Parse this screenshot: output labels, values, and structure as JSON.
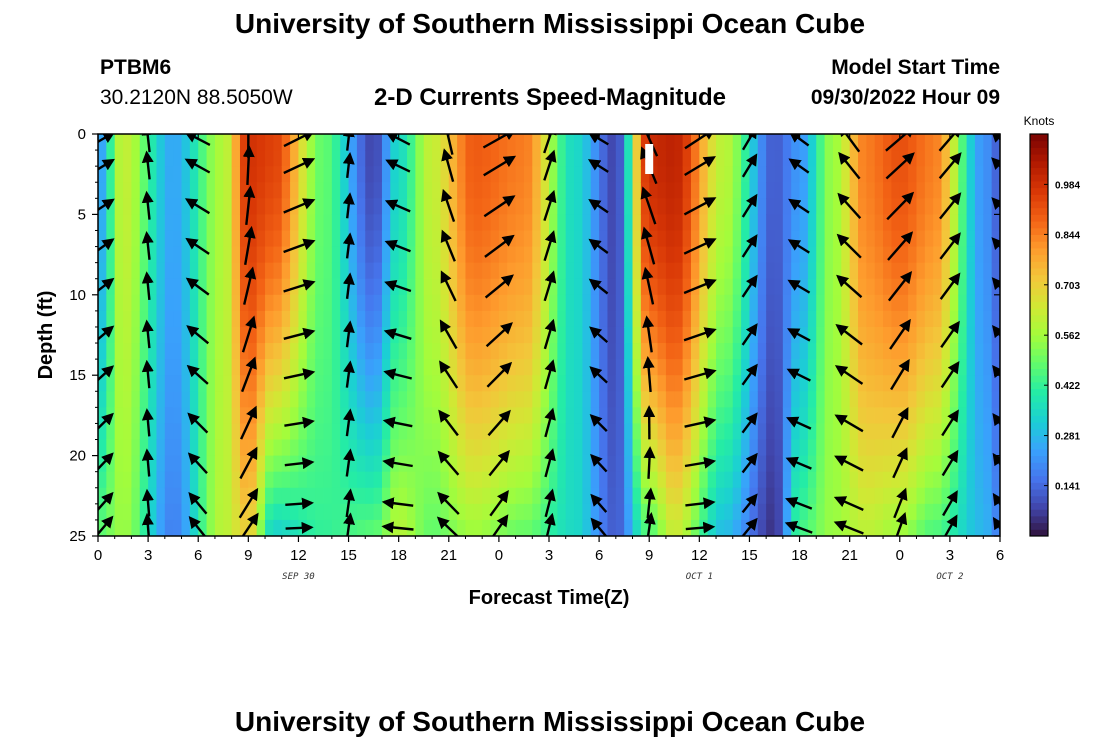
{
  "header": {
    "title": "University of Southern Mississippi Ocean Cube",
    "station": "PTBM6",
    "coords": "30.2120N  88.5050W",
    "plot_title": "2-D Currents Speed-Magnitude",
    "start_label": "Model Start Time",
    "start_value": "09/30/2022 Hour 09"
  },
  "footer": {
    "title": "University of Southern Mississippi Ocean Cube"
  },
  "chart_data": {
    "type": "heatmap",
    "title": "2-D Currents Speed-Magnitude",
    "xlabel": "Forecast Time(Z)",
    "ylabel": "Depth (ft)",
    "x_hours_range": [
      0,
      54
    ],
    "x_tick_hours": [
      0,
      3,
      6,
      9,
      12,
      15,
      18,
      21,
      24,
      27,
      30,
      33,
      36,
      39,
      42,
      45,
      48,
      51,
      54
    ],
    "x_tick_labels": [
      "0",
      "3",
      "6",
      "9",
      "12",
      "15",
      "18",
      "21",
      "0",
      "3",
      "6",
      "9",
      "12",
      "15",
      "18",
      "21",
      "0",
      "3",
      "6"
    ],
    "date_labels": [
      {
        "text": "SEP 30",
        "hour": 12
      },
      {
        "text": "OCT 1",
        "hour": 36
      },
      {
        "text": "OCT 2",
        "hour": 51
      }
    ],
    "ylim": [
      0,
      25
    ],
    "y_ticks": [
      0,
      5,
      10,
      15,
      20,
      25
    ],
    "colorbar": {
      "unit": "Knots",
      "range": [
        0,
        1.125
      ],
      "ticks": [
        0.141,
        0.281,
        0.422,
        0.562,
        0.703,
        0.844,
        0.984
      ],
      "tick_labels": [
        "0.141",
        "0.281",
        "0.422",
        "0.562",
        "0.703",
        "0.844",
        "0.984"
      ],
      "colors": [
        "#30123b",
        "#4145ab",
        "#4675ed",
        "#39a2fc",
        "#1bcfd4",
        "#24eca6",
        "#61fc6c",
        "#a4fc3b",
        "#d1e834",
        "#f3c63a",
        "#fe9b2d",
        "#f36315",
        "#d93806",
        "#b11901",
        "#7a0402"
      ]
    },
    "current_marker_hour": 33,
    "speed_profile": {
      "hours": [
        0,
        1.5,
        4.5,
        7.5,
        9,
        10.5,
        13.5,
        16.5,
        18,
        20,
        22.5,
        25.5,
        28.5,
        31,
        33,
        34.5,
        37.5,
        40.5,
        42,
        44,
        46,
        48,
        50,
        53,
        54
      ],
      "surface_knots": [
        0.22,
        0.62,
        0.25,
        0.58,
        0.98,
        0.95,
        0.48,
        0.08,
        0.35,
        0.62,
        0.9,
        0.85,
        0.35,
        0.08,
        1.0,
        1.02,
        0.6,
        0.12,
        0.22,
        0.55,
        0.85,
        0.92,
        0.85,
        0.22,
        0.12
      ],
      "bottom_knots": [
        0.48,
        0.55,
        0.18,
        0.6,
        0.7,
        0.32,
        0.42,
        0.48,
        0.6,
        0.48,
        0.55,
        0.48,
        0.35,
        0.12,
        0.45,
        0.62,
        0.28,
        0.05,
        0.45,
        0.55,
        0.6,
        0.55,
        0.45,
        0.28,
        0.18
      ]
    }
  }
}
